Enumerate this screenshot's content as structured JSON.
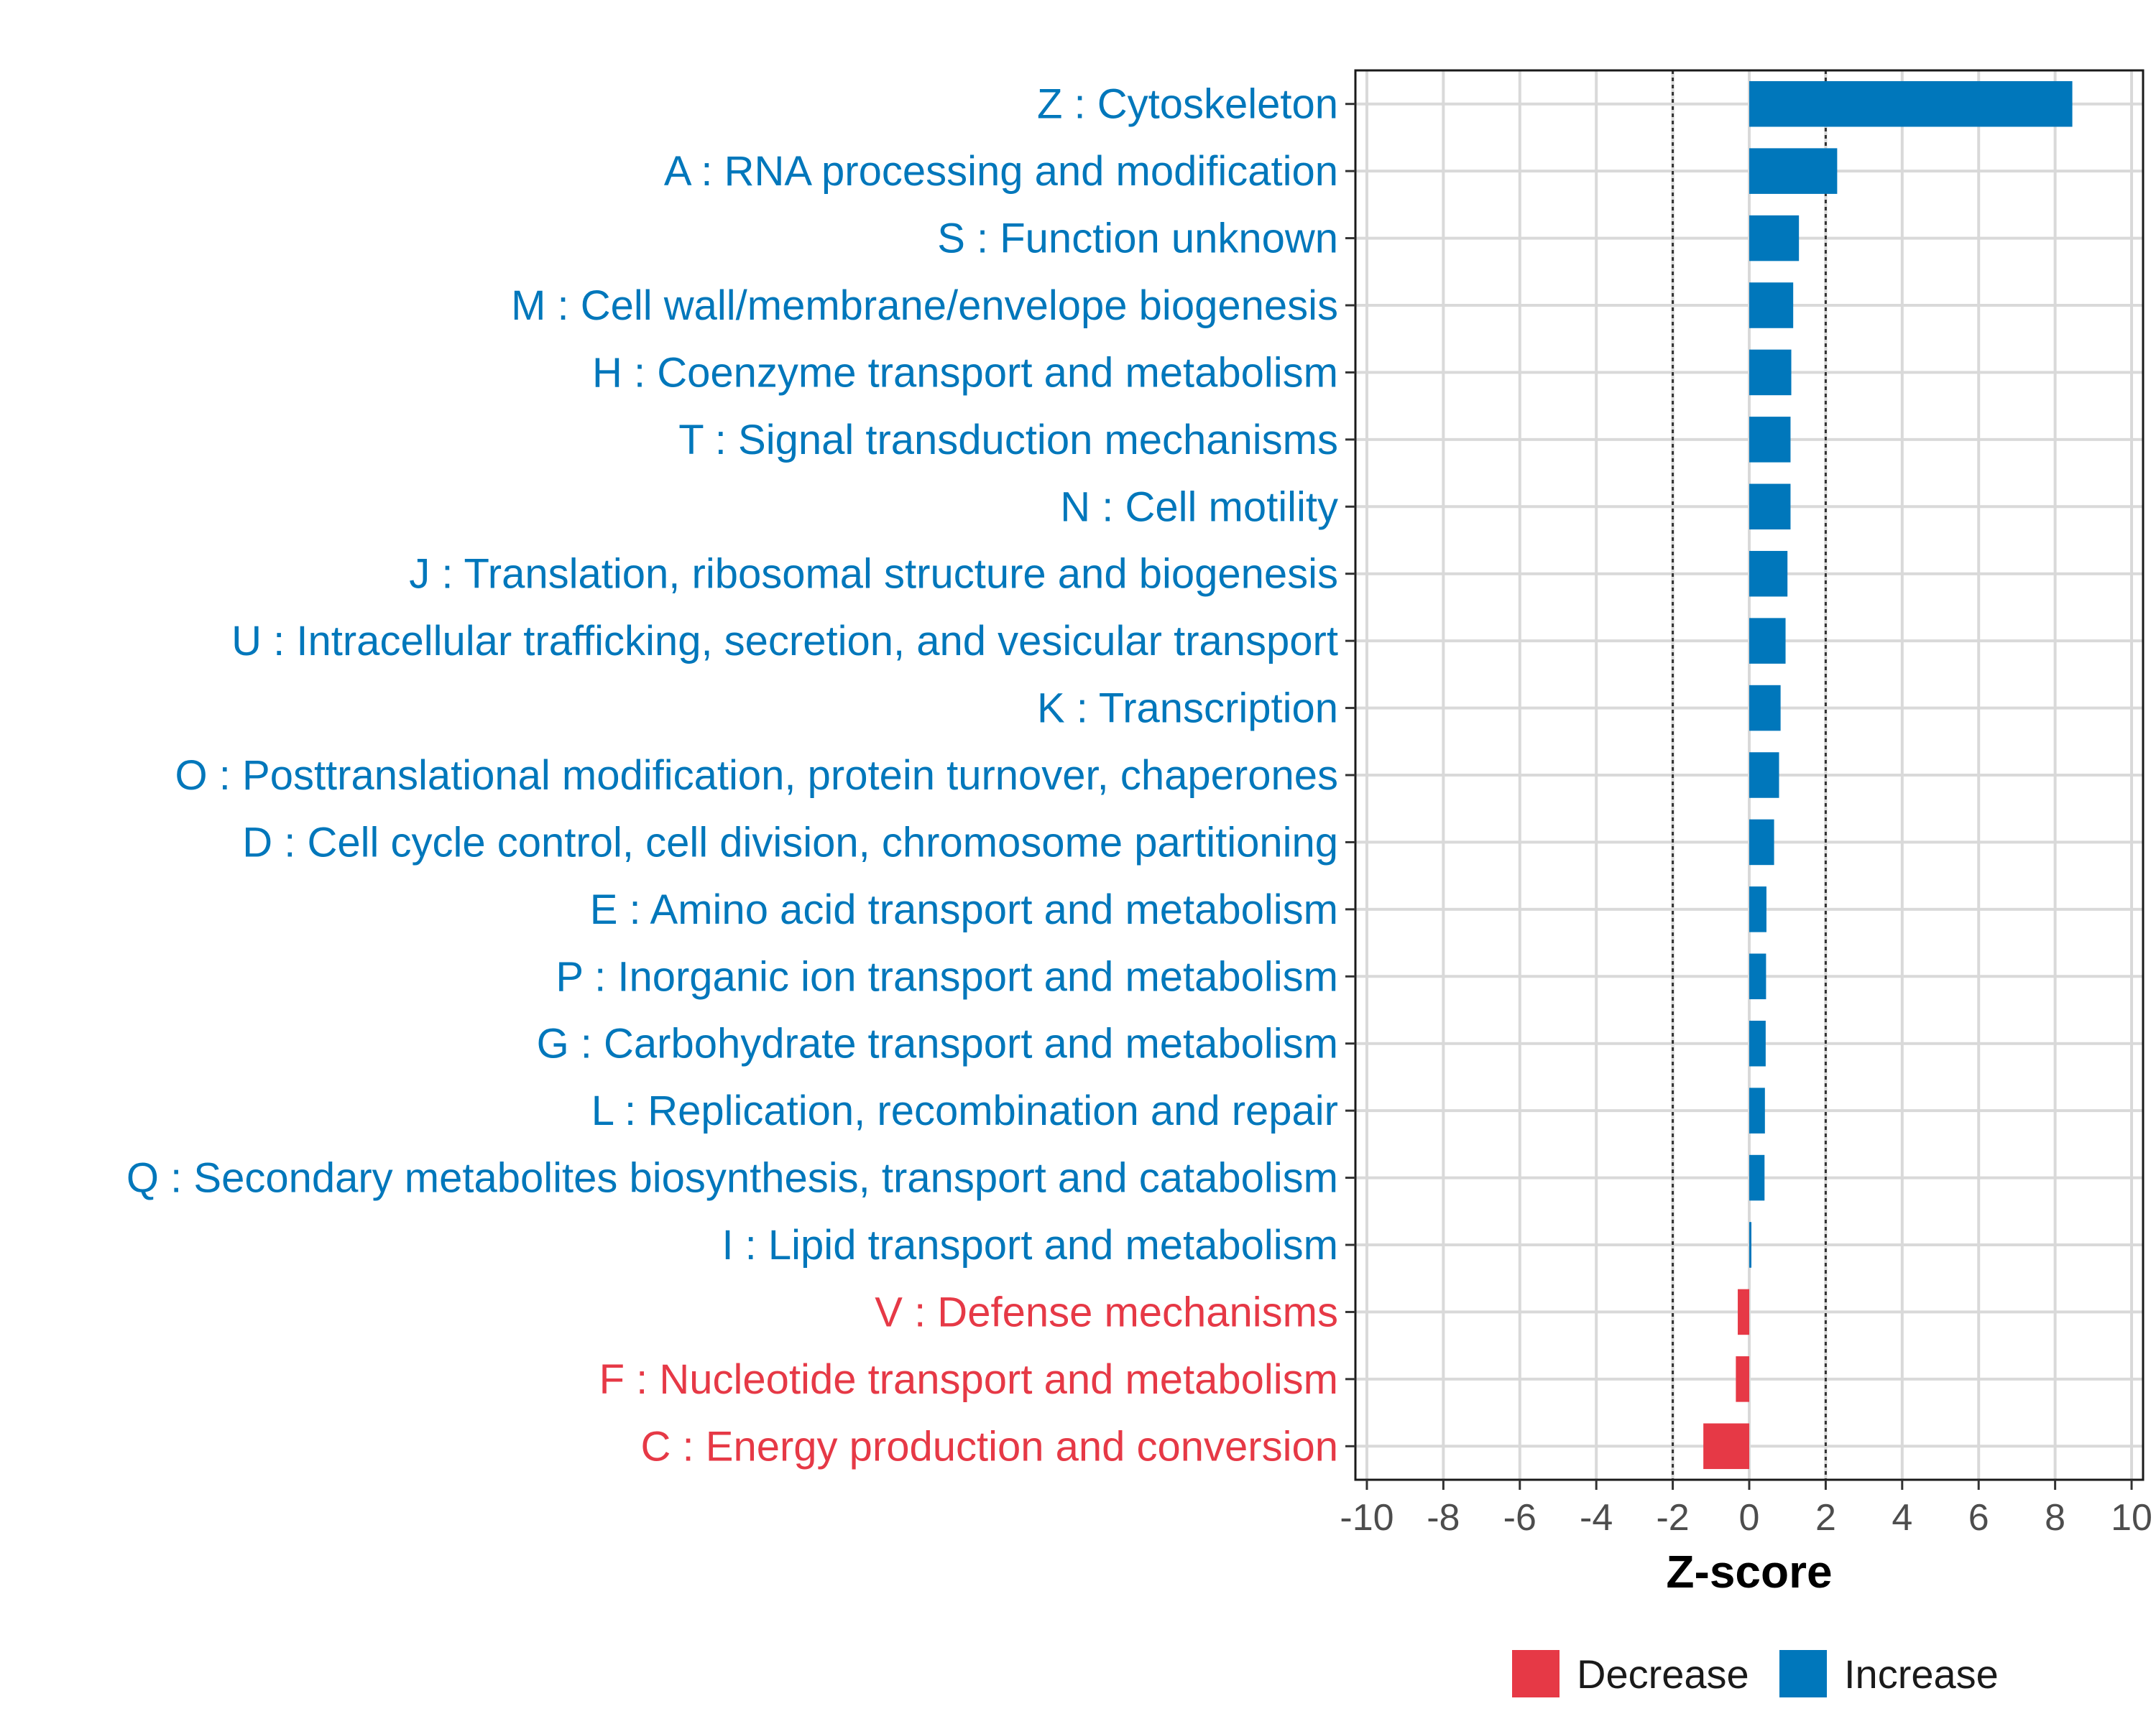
{
  "chart_data": {
    "type": "bar",
    "orientation": "horizontal",
    "xlabel": "Z-score",
    "ylabel": "",
    "xlim": [
      -10.3,
      10.3
    ],
    "xticks": [
      -10,
      -8,
      -6,
      -4,
      -2,
      0,
      2,
      4,
      6,
      8,
      10
    ],
    "reference_lines": [
      -2,
      2
    ],
    "grid": true,
    "legend_position": "bottom",
    "colors": {
      "Decrease": "#e63946",
      "Increase": "#0077bb"
    },
    "legend": [
      {
        "label": "Decrease",
        "color": "#e63946"
      },
      {
        "label": "Increase",
        "color": "#0077bb"
      }
    ],
    "categories": [
      "Z : Cytoskeleton",
      "A : RNA processing and modification",
      "S : Function unknown",
      "M : Cell wall/membrane/envelope biogenesis",
      "H : Coenzyme transport and metabolism",
      "T : Signal transduction mechanisms",
      "N : Cell motility",
      "J : Translation, ribosomal structure and biogenesis",
      "U : Intracellular trafficking, secretion, and vesicular transport",
      "K : Transcription",
      "O : Posttranslational modification, protein turnover, chaperones",
      "D : Cell cycle control, cell division, chromosome partitioning",
      "E : Amino acid transport and metabolism",
      "P : Inorganic ion transport and metabolism",
      "G : Carbohydrate transport and metabolism",
      "L : Replication, recombination and repair",
      "Q : Secondary metabolites biosynthesis, transport and catabolism",
      "I : Lipid transport and metabolism",
      "V : Defense mechanisms",
      "F : Nucleotide transport and metabolism",
      "C : Energy production and conversion"
    ],
    "values": [
      8.45,
      2.3,
      1.3,
      1.15,
      1.1,
      1.08,
      1.08,
      1.0,
      0.95,
      0.82,
      0.78,
      0.65,
      0.45,
      0.44,
      0.43,
      0.41,
      0.4,
      0.05,
      -0.3,
      -0.35,
      -1.2
    ],
    "direction": [
      "Increase",
      "Increase",
      "Increase",
      "Increase",
      "Increase",
      "Increase",
      "Increase",
      "Increase",
      "Increase",
      "Increase",
      "Increase",
      "Increase",
      "Increase",
      "Increase",
      "Increase",
      "Increase",
      "Increase",
      "Increase",
      "Decrease",
      "Decrease",
      "Decrease"
    ]
  }
}
